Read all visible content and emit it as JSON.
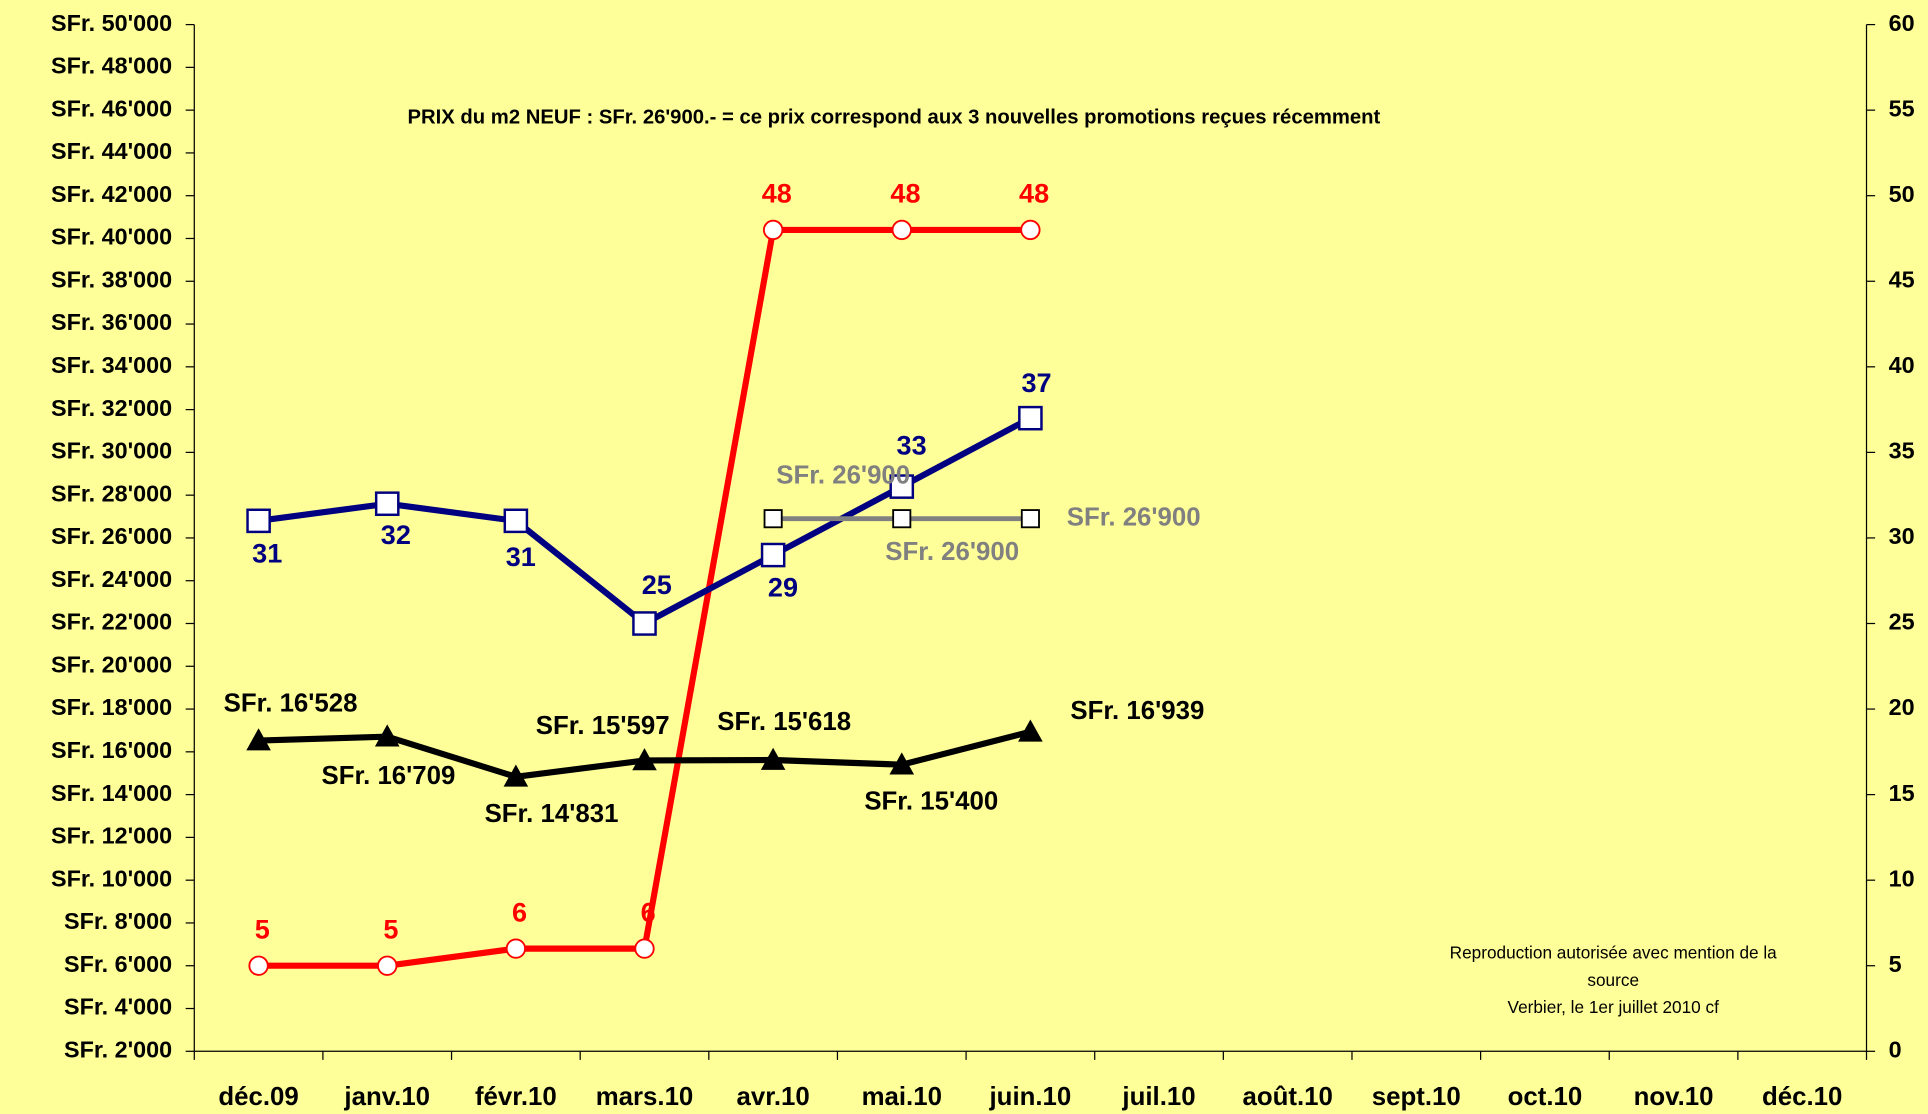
{
  "chart_data": {
    "type": "line",
    "annotation": "PRIX du m2 NEUF : SFr. 26'900.- =  ce prix correspond aux 3 nouvelles promotions reçues récemment",
    "footnote": [
      "Reproduction autorisée avec mention de la",
      "source",
      "Verbier, le 1er juillet 2010 cf"
    ],
    "categories": [
      "déc.09",
      "janv.10",
      "févr.10",
      "mars.10",
      "avr.10",
      "mai.10",
      "juin.10",
      "juil.10",
      "août.10",
      "sept.10",
      "oct.10",
      "nov.10",
      "déc.10"
    ],
    "ylim": [
      2000,
      50000
    ],
    "yticks": [
      {
        "value": 2000,
        "label": "SFr. 2'000"
      },
      {
        "value": 4000,
        "label": "SFr. 4'000"
      },
      {
        "value": 6000,
        "label": "SFr. 6'000"
      },
      {
        "value": 8000,
        "label": "SFr. 8'000"
      },
      {
        "value": 10000,
        "label": "SFr. 10'000"
      },
      {
        "value": 12000,
        "label": "SFr. 12'000"
      },
      {
        "value": 14000,
        "label": "SFr. 14'000"
      },
      {
        "value": 16000,
        "label": "SFr. 16'000"
      },
      {
        "value": 18000,
        "label": "SFr. 18'000"
      },
      {
        "value": 20000,
        "label": "SFr. 20'000"
      },
      {
        "value": 22000,
        "label": "SFr. 22'000"
      },
      {
        "value": 24000,
        "label": "SFr. 24'000"
      },
      {
        "value": 26000,
        "label": "SFr. 26'000"
      },
      {
        "value": 28000,
        "label": "SFr. 28'000"
      },
      {
        "value": 30000,
        "label": "SFr. 30'000"
      },
      {
        "value": 32000,
        "label": "SFr. 32'000"
      },
      {
        "value": 34000,
        "label": "SFr. 34'000"
      },
      {
        "value": 36000,
        "label": "SFr. 36'000"
      },
      {
        "value": 38000,
        "label": "SFr. 38'000"
      },
      {
        "value": 40000,
        "label": "SFr. 40'000"
      },
      {
        "value": 42000,
        "label": "SFr. 42'000"
      },
      {
        "value": 44000,
        "label": "SFr. 44'000"
      },
      {
        "value": 46000,
        "label": "SFr. 46'000"
      },
      {
        "value": 48000,
        "label": "SFr. 48'000"
      },
      {
        "value": 50000,
        "label": "SFr. 50'000"
      }
    ],
    "y2lim": [
      0,
      60
    ],
    "y2ticks": [
      0,
      5,
      10,
      15,
      20,
      25,
      30,
      35,
      40,
      45,
      50,
      55,
      60
    ],
    "series": [
      {
        "color": "#ff0000",
        "marker": "circle",
        "axis": "y2",
        "values": [
          5,
          5,
          6,
          6,
          48,
          48,
          48,
          null,
          null,
          null,
          null,
          null,
          null
        ]
      },
      {
        "color": "#000080",
        "marker": "square",
        "axis": "y2",
        "values": [
          31,
          32,
          31,
          25,
          29,
          33,
          37,
          null,
          null,
          null,
          null,
          null,
          null
        ]
      },
      {
        "color": "#808080",
        "marker": "square",
        "values": [
          null,
          null,
          null,
          null,
          26900,
          26900,
          26900,
          null,
          null,
          null,
          null,
          null,
          null
        ],
        "value_labels": [
          null,
          null,
          null,
          null,
          "SFr. 26'900",
          "SFr. 26'900",
          "SFr. 26'900",
          null,
          null,
          null,
          null,
          null,
          null
        ]
      },
      {
        "color": "#000000",
        "marker": "triangle",
        "values": [
          16528,
          16709,
          14831,
          15597,
          15618,
          15400,
          16939,
          null,
          null,
          null,
          null,
          null,
          null
        ],
        "value_labels": [
          "SFr. 16'528",
          "SFr. 16'709",
          "SFr. 14'831",
          "SFr. 15'597",
          "SFr. 15'618",
          "SFr. 15'400",
          "SFr. 16'939",
          null,
          null,
          null,
          null,
          null,
          null
        ]
      }
    ]
  }
}
